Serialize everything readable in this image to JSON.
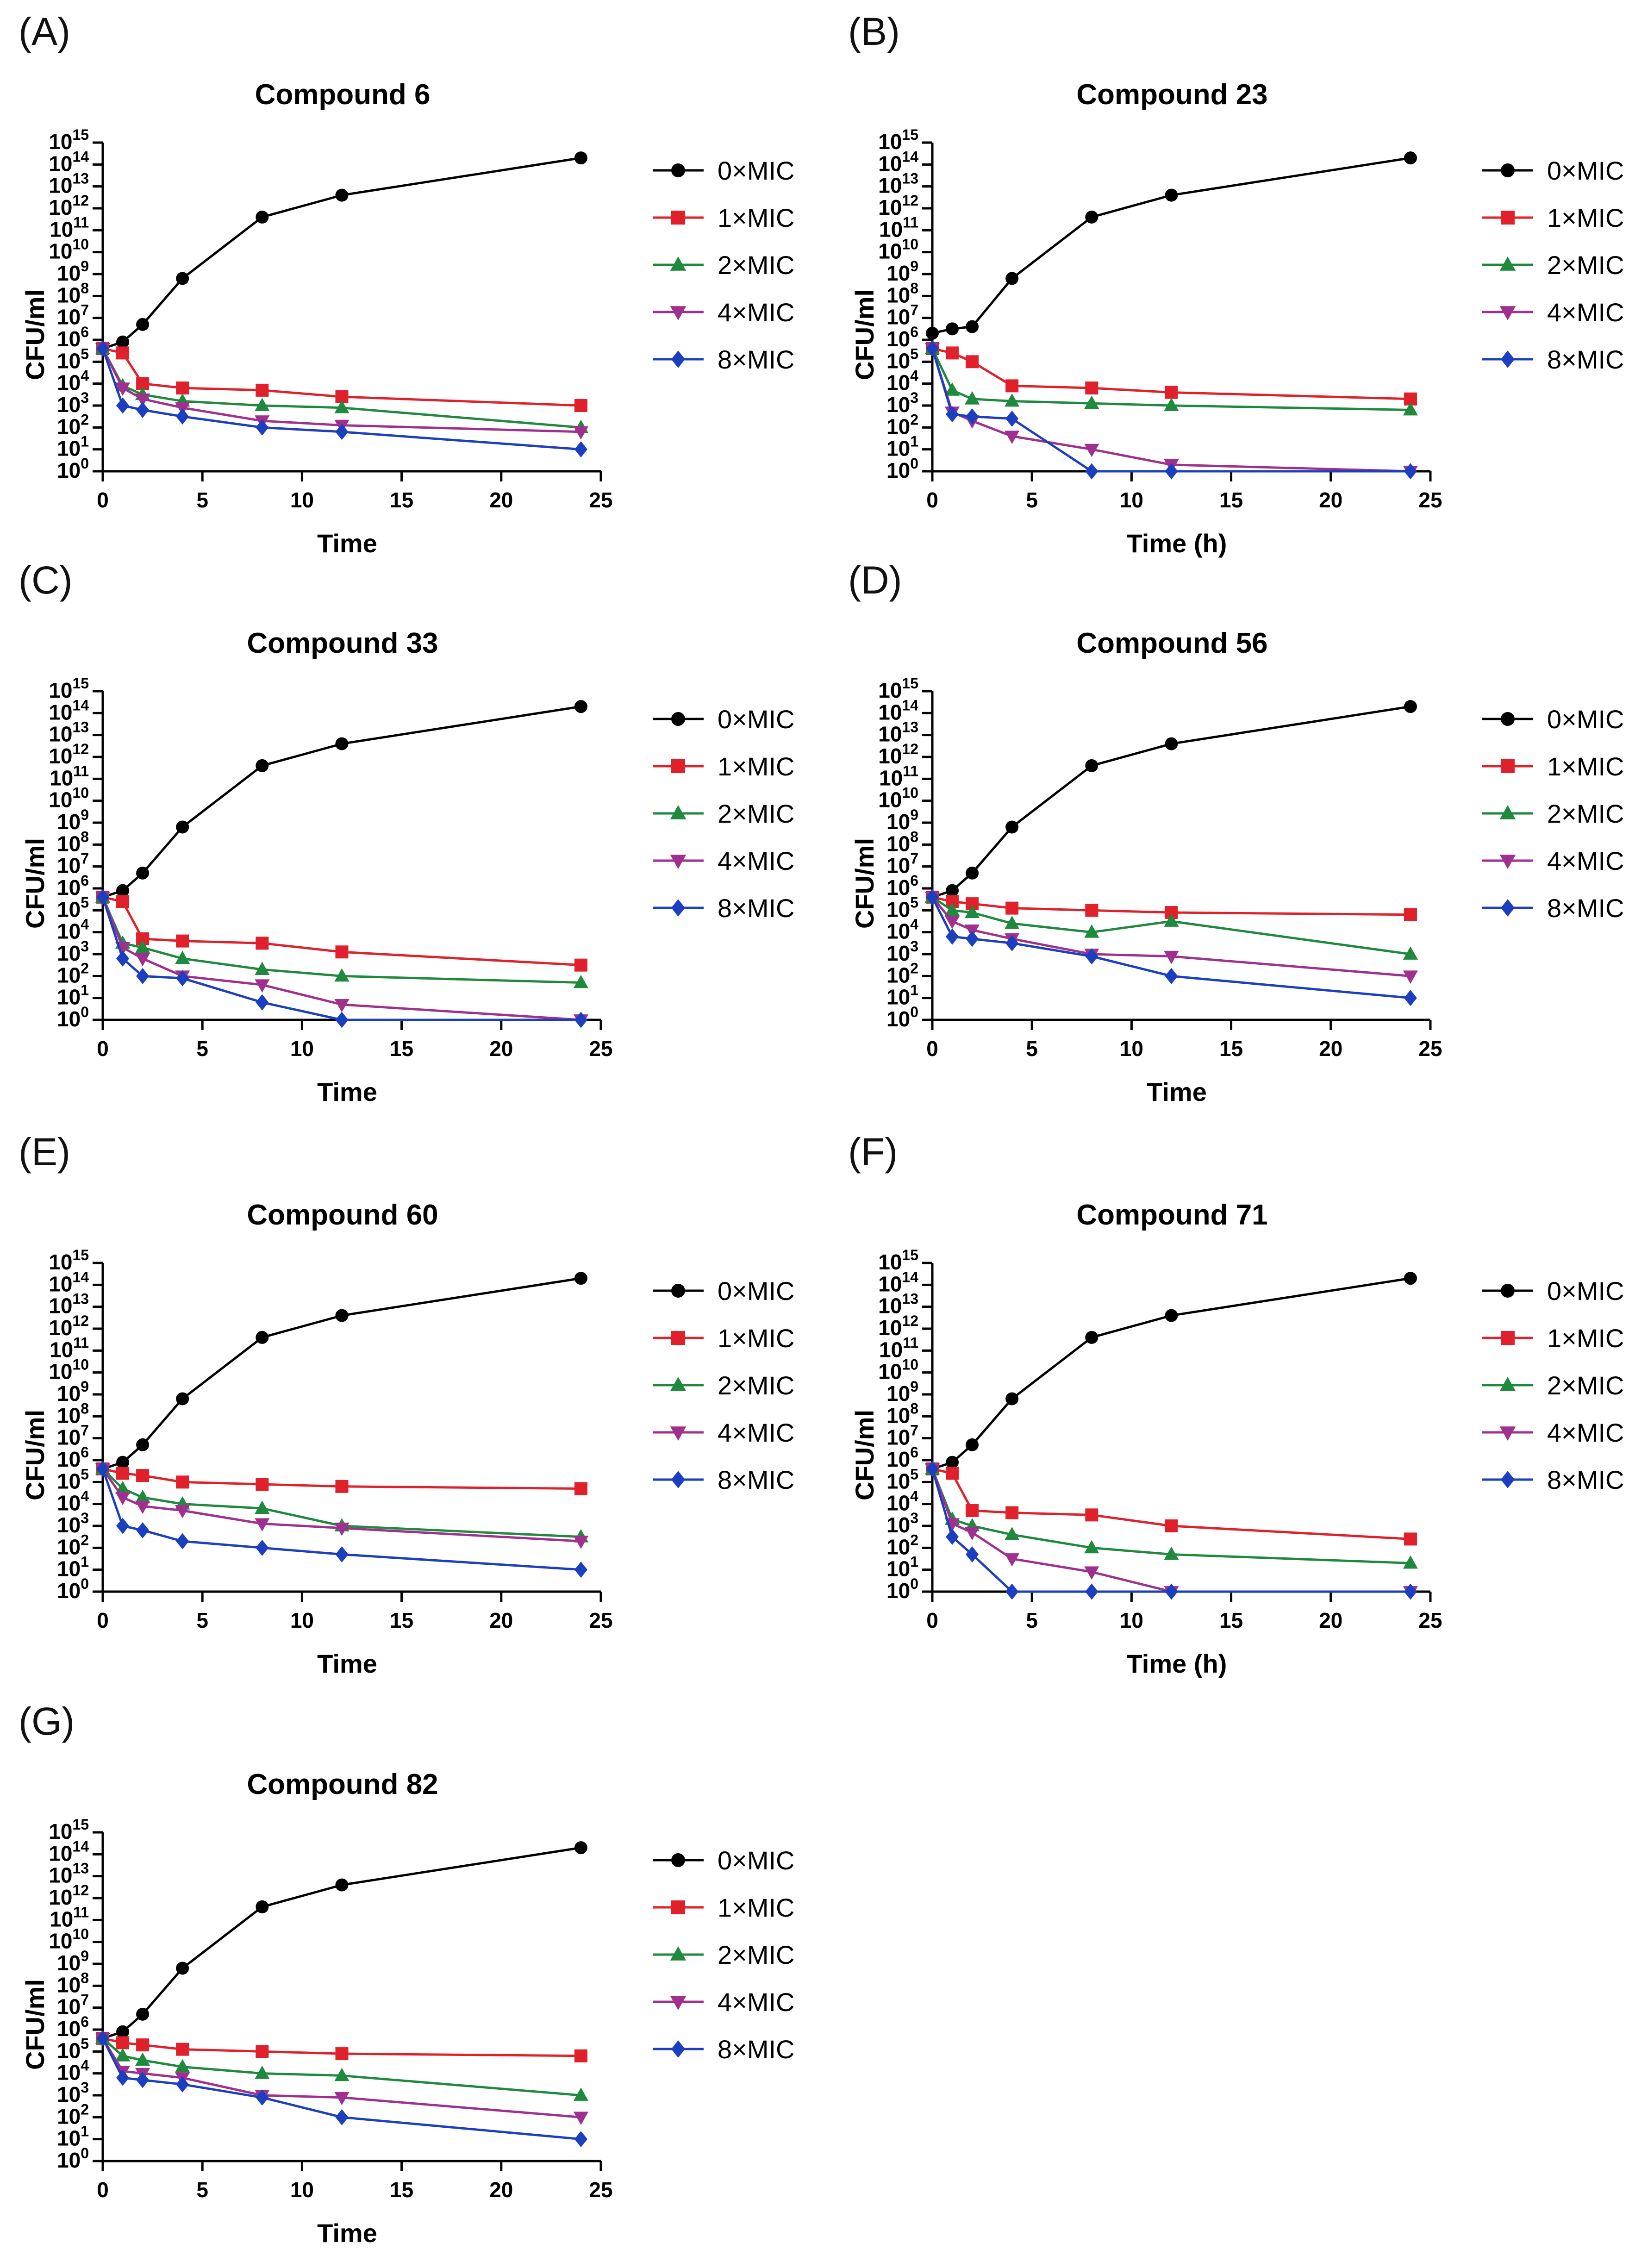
{
  "colors": {
    "0xMIC": "#000000",
    "1xMIC": "#e0202a",
    "2xMIC": "#1f8a3d",
    "4xMIC": "#a0308f",
    "8xMIC": "#1b3fbf"
  },
  "markers": {
    "0xMIC": "circle",
    "1xMIC": "square",
    "2xMIC": "triangle-up",
    "4xMIC": "triangle-down",
    "8xMIC": "diamond"
  },
  "chart_data": [
    {
      "panel_label": "(A)",
      "type": "line",
      "title": "Compound 6",
      "xlabel": "Time",
      "ylabel": "CFU/ml",
      "xlim": [
        0,
        25
      ],
      "xticks": [
        "0",
        "5",
        "10",
        "15",
        "20",
        "25"
      ],
      "ylim_log10": [
        0,
        15
      ],
      "ytick_base": "10",
      "yticks_exp": [
        "0",
        "1",
        "2",
        "3",
        "4",
        "5",
        "6",
        "7",
        "8",
        "9",
        "10",
        "11",
        "12",
        "13",
        "14",
        "15"
      ],
      "x": [
        0,
        1,
        2,
        4,
        8,
        12,
        24
      ],
      "series": [
        {
          "name": "0×MIC",
          "key": "0xMIC",
          "log10_values": [
            5.6,
            5.9,
            6.7,
            8.8,
            11.6,
            12.6,
            14.3
          ]
        },
        {
          "name": "1×MIC",
          "key": "1xMIC",
          "log10_values": [
            5.6,
            5.4,
            4.0,
            3.8,
            3.7,
            3.4,
            3.0
          ]
        },
        {
          "name": "2×MIC",
          "key": "2xMIC",
          "log10_values": [
            5.6,
            3.9,
            3.5,
            3.2,
            3.0,
            2.9,
            2.0
          ]
        },
        {
          "name": "4×MIC",
          "key": "4xMIC",
          "log10_values": [
            5.6,
            3.8,
            3.3,
            2.9,
            2.3,
            2.1,
            1.8
          ]
        },
        {
          "name": "8×MIC",
          "key": "8xMIC",
          "log10_values": [
            5.6,
            3.0,
            2.8,
            2.5,
            2.0,
            1.8,
            1.0
          ]
        }
      ]
    },
    {
      "panel_label": "(B)",
      "type": "line",
      "title": "Compound 23",
      "xlabel": "Time (h)",
      "ylabel": "CFU/ml",
      "xlim": [
        0,
        25
      ],
      "xticks": [
        "0",
        "5",
        "10",
        "15",
        "20",
        "25"
      ],
      "ylim_log10": [
        0,
        15
      ],
      "ytick_base": "10",
      "yticks_exp": [
        "0",
        "1",
        "2",
        "3",
        "4",
        "5",
        "6",
        "7",
        "8",
        "9",
        "10",
        "11",
        "12",
        "13",
        "14",
        "15"
      ],
      "x": [
        0,
        1,
        2,
        4,
        8,
        12,
        24
      ],
      "series": [
        {
          "name": "0×MIC",
          "key": "0xMIC",
          "log10_values": [
            6.3,
            6.5,
            6.6,
            8.8,
            11.6,
            12.6,
            14.3
          ]
        },
        {
          "name": "1×MIC",
          "key": "1xMIC",
          "log10_values": [
            5.6,
            5.4,
            5.0,
            3.9,
            3.8,
            3.6,
            3.3
          ]
        },
        {
          "name": "2×MIC",
          "key": "2xMIC",
          "log10_values": [
            5.6,
            3.7,
            3.3,
            3.2,
            3.1,
            3.0,
            2.8
          ]
        },
        {
          "name": "4×MIC",
          "key": "4xMIC",
          "log10_values": [
            5.6,
            2.7,
            2.3,
            1.6,
            1.0,
            0.3,
            0.0
          ]
        },
        {
          "name": "8×MIC",
          "key": "8xMIC",
          "log10_values": [
            5.6,
            2.6,
            2.5,
            2.4,
            0.0,
            0.0,
            0.0
          ]
        }
      ]
    },
    {
      "panel_label": "(C)",
      "type": "line",
      "title": "Compound 33",
      "xlabel": "Time",
      "ylabel": "CFU/ml",
      "xlim": [
        0,
        25
      ],
      "xticks": [
        "0",
        "5",
        "10",
        "15",
        "20",
        "25"
      ],
      "ylim_log10": [
        0,
        15
      ],
      "ytick_base": "10",
      "yticks_exp": [
        "0",
        "1",
        "2",
        "3",
        "4",
        "5",
        "6",
        "7",
        "8",
        "9",
        "10",
        "11",
        "12",
        "13",
        "14",
        "15"
      ],
      "x": [
        0,
        1,
        2,
        4,
        8,
        12,
        24
      ],
      "series": [
        {
          "name": "0×MIC",
          "key": "0xMIC",
          "log10_values": [
            5.6,
            5.9,
            6.7,
            8.8,
            11.6,
            12.6,
            14.3
          ]
        },
        {
          "name": "1×MIC",
          "key": "1xMIC",
          "log10_values": [
            5.6,
            5.4,
            3.7,
            3.6,
            3.5,
            3.1,
            2.5
          ]
        },
        {
          "name": "2×MIC",
          "key": "2xMIC",
          "log10_values": [
            5.6,
            3.5,
            3.3,
            2.8,
            2.3,
            2.0,
            1.7
          ]
        },
        {
          "name": "4×MIC",
          "key": "4xMIC",
          "log10_values": [
            5.6,
            3.3,
            2.8,
            2.0,
            1.6,
            0.7,
            0.0
          ]
        },
        {
          "name": "8×MIC",
          "key": "8xMIC",
          "log10_values": [
            5.6,
            2.8,
            2.0,
            1.9,
            0.8,
            0.0,
            0.0
          ]
        }
      ]
    },
    {
      "panel_label": "(D)",
      "type": "line",
      "title": "Compound 56",
      "xlabel": "Time",
      "ylabel": "CFU/ml",
      "xlim": [
        0,
        25
      ],
      "xticks": [
        "0",
        "5",
        "10",
        "15",
        "20",
        "25"
      ],
      "ylim_log10": [
        0,
        15
      ],
      "ytick_base": "10",
      "yticks_exp": [
        "0",
        "1",
        "2",
        "3",
        "4",
        "5",
        "6",
        "7",
        "8",
        "9",
        "10",
        "11",
        "12",
        "13",
        "14",
        "15"
      ],
      "x": [
        0,
        1,
        2,
        4,
        8,
        12,
        24
      ],
      "series": [
        {
          "name": "0×MIC",
          "key": "0xMIC",
          "log10_values": [
            5.6,
            5.9,
            6.7,
            8.8,
            11.6,
            12.6,
            14.3
          ]
        },
        {
          "name": "1×MIC",
          "key": "1xMIC",
          "log10_values": [
            5.6,
            5.4,
            5.3,
            5.1,
            5.0,
            4.9,
            4.8
          ]
        },
        {
          "name": "2×MIC",
          "key": "2xMIC",
          "log10_values": [
            5.6,
            5.0,
            4.9,
            4.4,
            4.0,
            4.5,
            3.0
          ]
        },
        {
          "name": "4×MIC",
          "key": "4xMIC",
          "log10_values": [
            5.6,
            4.5,
            4.1,
            3.7,
            3.0,
            2.9,
            2.0
          ]
        },
        {
          "name": "8×MIC",
          "key": "8xMIC",
          "log10_values": [
            5.6,
            3.8,
            3.7,
            3.5,
            2.9,
            2.0,
            1.0
          ]
        }
      ]
    },
    {
      "panel_label": "(E)",
      "type": "line",
      "title": "Compound 60",
      "xlabel": "Time",
      "ylabel": "CFU/ml",
      "xlim": [
        0,
        25
      ],
      "xticks": [
        "0",
        "5",
        "10",
        "15",
        "20",
        "25"
      ],
      "ylim_log10": [
        0,
        15
      ],
      "ytick_base": "10",
      "yticks_exp": [
        "0",
        "1",
        "2",
        "3",
        "4",
        "5",
        "6",
        "7",
        "8",
        "9",
        "10",
        "11",
        "12",
        "13",
        "14",
        "15"
      ],
      "x": [
        0,
        1,
        2,
        4,
        8,
        12,
        24
      ],
      "series": [
        {
          "name": "0×MIC",
          "key": "0xMIC",
          "log10_values": [
            5.6,
            5.9,
            6.7,
            8.8,
            11.6,
            12.6,
            14.3
          ]
        },
        {
          "name": "1×MIC",
          "key": "1xMIC",
          "log10_values": [
            5.6,
            5.4,
            5.3,
            5.0,
            4.9,
            4.8,
            4.7
          ]
        },
        {
          "name": "2×MIC",
          "key": "2xMIC",
          "log10_values": [
            5.6,
            4.7,
            4.3,
            4.0,
            3.8,
            3.0,
            2.5
          ]
        },
        {
          "name": "4×MIC",
          "key": "4xMIC",
          "log10_values": [
            5.6,
            4.3,
            3.9,
            3.7,
            3.1,
            2.9,
            2.3
          ]
        },
        {
          "name": "8×MIC",
          "key": "8xMIC",
          "log10_values": [
            5.6,
            3.0,
            2.8,
            2.3,
            2.0,
            1.7,
            1.0
          ]
        }
      ]
    },
    {
      "panel_label": "(F)",
      "type": "line",
      "title": "Compound 71",
      "xlabel": "Time (h)",
      "ylabel": "CFU/ml",
      "xlim": [
        0,
        25
      ],
      "xticks": [
        "0",
        "5",
        "10",
        "15",
        "20",
        "25"
      ],
      "ylim_log10": [
        0,
        15
      ],
      "ytick_base": "10",
      "yticks_exp": [
        "0",
        "1",
        "2",
        "3",
        "4",
        "5",
        "6",
        "7",
        "8",
        "9",
        "10",
        "11",
        "12",
        "13",
        "14",
        "15"
      ],
      "x": [
        0,
        1,
        2,
        4,
        8,
        12,
        24
      ],
      "series": [
        {
          "name": "0×MIC",
          "key": "0xMIC",
          "log10_values": [
            5.6,
            5.9,
            6.7,
            8.8,
            11.6,
            12.6,
            14.3
          ]
        },
        {
          "name": "1×MIC",
          "key": "1xMIC",
          "log10_values": [
            5.6,
            5.4,
            3.7,
            3.6,
            3.5,
            3.0,
            2.4
          ]
        },
        {
          "name": "2×MIC",
          "key": "2xMIC",
          "log10_values": [
            5.6,
            3.3,
            3.0,
            2.6,
            2.0,
            1.7,
            1.3
          ]
        },
        {
          "name": "4×MIC",
          "key": "4xMIC",
          "log10_values": [
            5.6,
            3.1,
            2.7,
            1.5,
            0.9,
            0.0,
            0.0
          ]
        },
        {
          "name": "8×MIC",
          "key": "8xMIC",
          "log10_values": [
            5.6,
            2.5,
            1.7,
            0.0,
            0.0,
            0.0,
            0.0
          ]
        }
      ]
    },
    {
      "panel_label": "(G)",
      "type": "line",
      "title": "Compound 82",
      "xlabel": "Time",
      "ylabel": "CFU/ml",
      "xlim": [
        0,
        25
      ],
      "xticks": [
        "0",
        "5",
        "10",
        "15",
        "20",
        "25"
      ],
      "ylim_log10": [
        0,
        15
      ],
      "ytick_base": "10",
      "yticks_exp": [
        "0",
        "1",
        "2",
        "3",
        "4",
        "5",
        "6",
        "7",
        "8",
        "9",
        "10",
        "11",
        "12",
        "13",
        "14",
        "15"
      ],
      "x": [
        0,
        1,
        2,
        4,
        8,
        12,
        24
      ],
      "series": [
        {
          "name": "0×MIC",
          "key": "0xMIC",
          "log10_values": [
            5.6,
            5.9,
            6.7,
            8.8,
            11.6,
            12.6,
            14.3
          ]
        },
        {
          "name": "1×MIC",
          "key": "1xMIC",
          "log10_values": [
            5.6,
            5.4,
            5.3,
            5.1,
            5.0,
            4.9,
            4.8
          ]
        },
        {
          "name": "2×MIC",
          "key": "2xMIC",
          "log10_values": [
            5.6,
            4.8,
            4.6,
            4.3,
            4.0,
            3.9,
            3.0
          ]
        },
        {
          "name": "4×MIC",
          "key": "4xMIC",
          "log10_values": [
            5.6,
            4.1,
            4.0,
            3.8,
            3.0,
            2.9,
            2.0
          ]
        },
        {
          "name": "8×MIC",
          "key": "8xMIC",
          "log10_values": [
            5.6,
            3.8,
            3.7,
            3.5,
            2.9,
            2.0,
            1.0
          ]
        }
      ]
    }
  ]
}
